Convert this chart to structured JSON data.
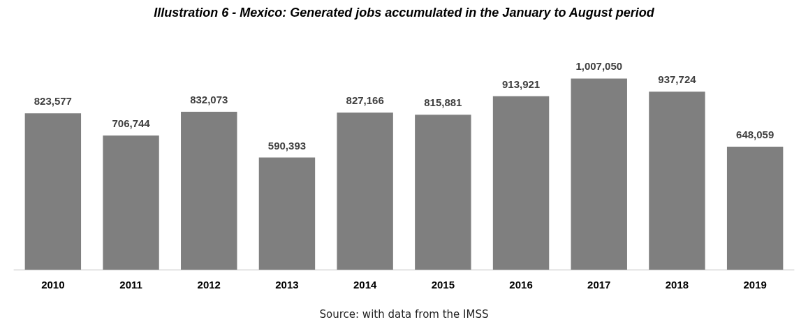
{
  "chart_data": {
    "type": "bar",
    "title": "Illustration 6 - Mexico: Generated jobs accumulated in the January to August period",
    "categories": [
      "2010",
      "2011",
      "2012",
      "2013",
      "2014",
      "2015",
      "2016",
      "2017",
      "2018",
      "2019"
    ],
    "values": [
      823577,
      706744,
      832073,
      590393,
      827166,
      815881,
      913921,
      1007050,
      937724,
      648059
    ],
    "value_labels": [
      "823,577",
      "706,744",
      "832,073",
      "590,393",
      "827,166",
      "815,881",
      "913,921",
      "1,007,050",
      "937,724",
      "648,059"
    ],
    "color": "#7f7f7f",
    "annotations": [
      "Source: with data from the IMSS"
    ]
  }
}
